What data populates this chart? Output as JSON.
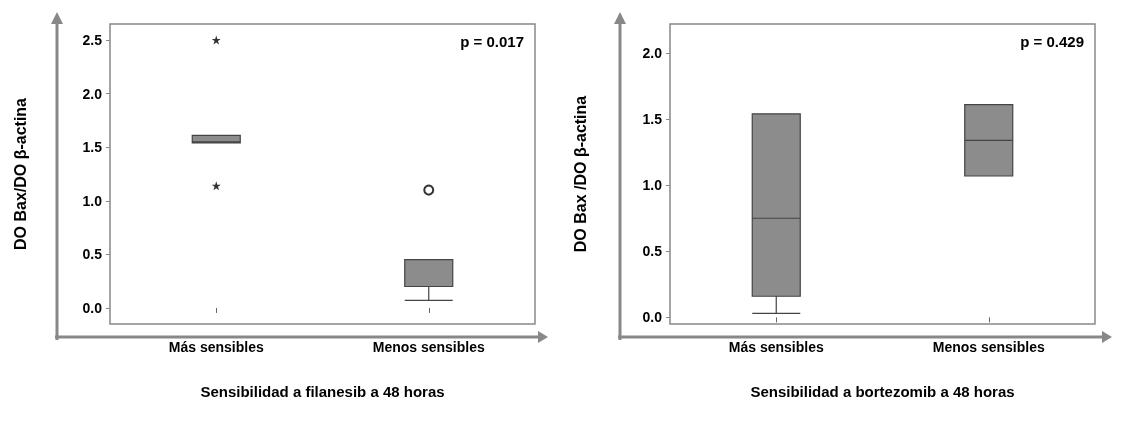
{
  "chart_data": [
    {
      "type": "box",
      "xlabel": "Sensibilidad a filanesib a 48 horas",
      "ylabel": "DO Bax/DO β-actina",
      "categories": [
        "Más sensibles",
        "Menos sensibles"
      ],
      "ylim": [
        -0.15,
        2.65
      ],
      "yticks": [
        {
          "value": 0,
          "label": "0.0"
        },
        {
          "value": 0.5,
          "label": "0.5"
        },
        {
          "value": 1,
          "label": "1.0"
        },
        {
          "value": 1.5,
          "label": "1.5"
        },
        {
          "value": 2,
          "label": "2.0"
        },
        {
          "value": 2.5,
          "label": "2.5"
        }
      ],
      "annotations": [
        "p = 0.017"
      ],
      "grid": false,
      "series": [
        {
          "color": "#8c8c8c",
          "marker": "circle",
          "boxes": [
            {
              "low": 1.54,
              "q1": 1.54,
              "median": 1.55,
              "q3": 1.61,
              "high": 1.61
            },
            {
              "low": 0.07,
              "q1": 0.2,
              "median": 0.2,
              "q3": 0.45,
              "high": 0.45,
              "outliers": [
                1.1
              ]
            }
          ]
        },
        {
          "type": "scatter",
          "color": "#000000",
          "marker": "star",
          "x": [
            "Más sensibles",
            "Más sensibles"
          ],
          "values": [
            2.5,
            1.14
          ]
        }
      ]
    },
    {
      "type": "box",
      "xlabel": "Sensibilidad a bortezomib a 48 horas",
      "ylabel": "DO Bax /DO β-actina",
      "categories": [
        "Más sensibles",
        "Menos sensibles"
      ],
      "ylim": [
        -0.05,
        2.22
      ],
      "yticks": [
        {
          "value": 0,
          "label": "0.0"
        },
        {
          "value": 0.5,
          "label": "0.5"
        },
        {
          "value": 1,
          "label": "1.0"
        },
        {
          "value": 1.5,
          "label": "1.5"
        },
        {
          "value": 2,
          "label": "2.0"
        }
      ],
      "annotations": [
        "p = 0.429"
      ],
      "grid": false,
      "series": [
        {
          "color": "#8c8c8c",
          "boxes": [
            {
              "low": 0.03,
              "q1": 0.16,
              "median": 0.75,
              "q3": 1.54,
              "high": 1.54
            },
            {
              "low": 1.07,
              "q1": 1.07,
              "median": 1.34,
              "q3": 1.61,
              "high": 1.61
            }
          ]
        }
      ]
    }
  ]
}
